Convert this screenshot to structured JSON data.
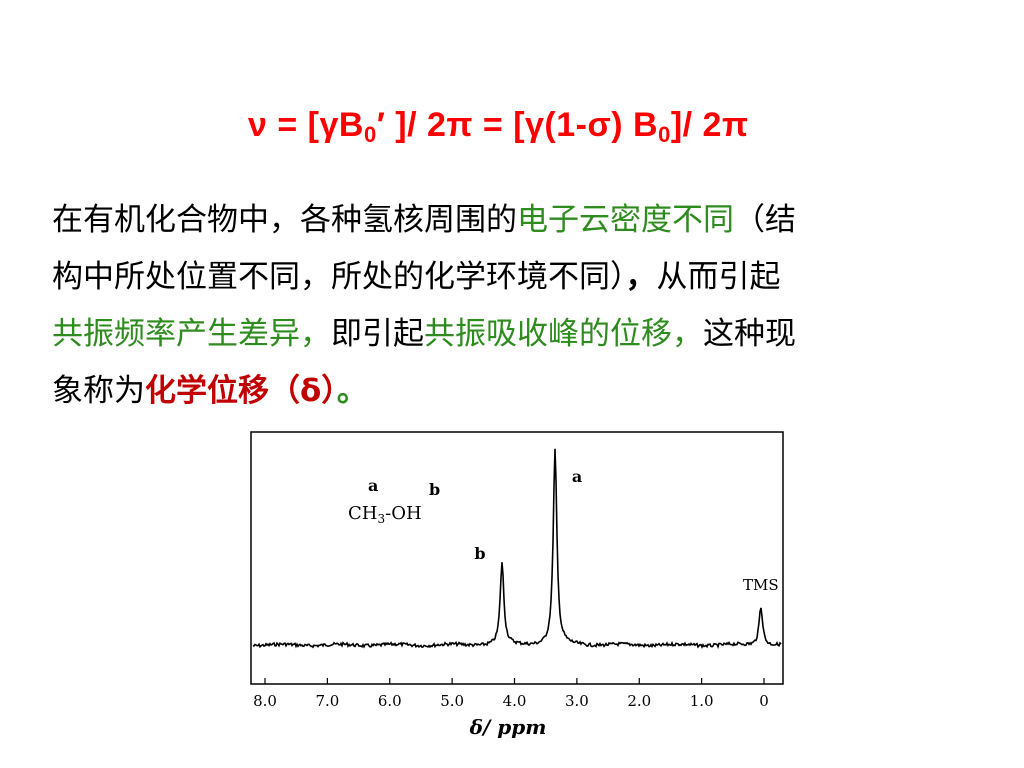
{
  "formula": {
    "text_a": "ν = [γB",
    "sub_a": "0",
    "text_b": "′ ]/ 2π = [γ(1-σ) B",
    "sub_b": "0",
    "text_c": "]/ 2π"
  },
  "paragraph": {
    "l1_a": "在有机化合物中，各种氢核周围的",
    "l1_b": "电子云密度不同",
    "l1_c": "（结",
    "l2_a": "构中所处位置不同，所处的化学环境不同）",
    "l2_b": "，",
    "l2_c": "从而引起",
    "l3_a": "共振频率产生差异，",
    "l3_b": "即引起",
    "l3_c": "共振吸收峰的位移，",
    "l3_d": "这种现",
    "l4_a": "象称为",
    "l4_b": "化学位移（δ）",
    "l4_c": "。"
  },
  "colors": {
    "formula": "#ff0000",
    "highlight_green": "#2e8b1e",
    "highlight_red": "#c00000"
  },
  "chart_data": {
    "type": "line",
    "title": "",
    "xlabel": "δ/ ppm",
    "ylabel": "",
    "xlim": [
      8.0,
      0
    ],
    "reversed_x": true,
    "x_ticks": [
      "8.0",
      "7.0",
      "6.0",
      "5.0",
      "4.0",
      "3.0",
      "2.0",
      "1.0",
      "0"
    ],
    "x_tick_values": [
      8.0,
      7.0,
      6.0,
      5.0,
      4.0,
      3.0,
      2.0,
      1.0,
      0
    ],
    "peaks": [
      {
        "label": "b",
        "shift": 4.2,
        "height": 0.42
      },
      {
        "label": "a",
        "shift": 3.35,
        "height": 1.0
      },
      {
        "label": "TMS",
        "shift": 0.05,
        "height": 0.2
      }
    ],
    "annotations": {
      "molecule_label_a": "a",
      "molecule_label_b": "b",
      "molecule_left": "CH",
      "molecule_left_sub": "3",
      "molecule_bond": "-",
      "molecule_right": "OH"
    },
    "grid": false
  }
}
